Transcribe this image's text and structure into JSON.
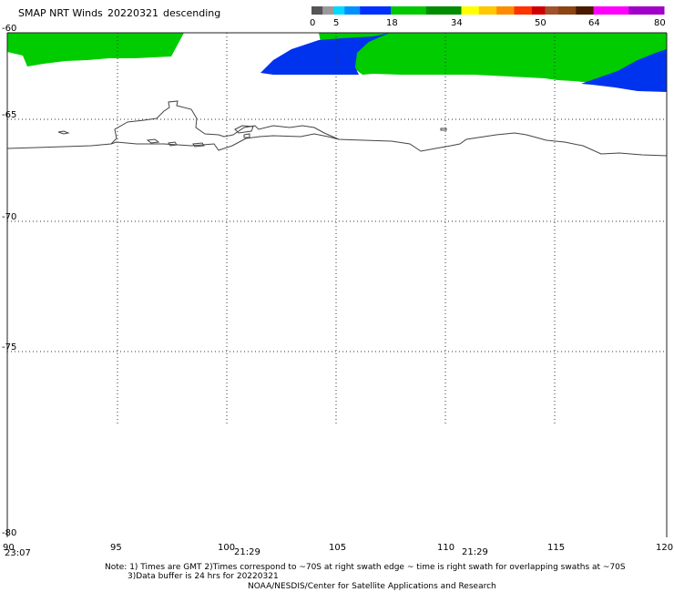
{
  "header": {
    "title": "SMAP NRT Winds",
    "date": "20220321",
    "pass": "descending"
  },
  "colorbar": {
    "ticks": [
      "0",
      "5",
      "18",
      "34",
      "50",
      "64",
      "80"
    ],
    "segments": [
      {
        "from": 0,
        "to": 2.5,
        "color": "#555555"
      },
      {
        "from": 2.5,
        "to": 5,
        "color": "#9a9a9a"
      },
      {
        "from": 5,
        "to": 7.5,
        "color": "#00d8ff"
      },
      {
        "from": 7.5,
        "to": 11,
        "color": "#0090ff"
      },
      {
        "from": 11,
        "to": 18,
        "color": "#0030ff"
      },
      {
        "from": 18,
        "to": 26,
        "color": "#00c800"
      },
      {
        "from": 26,
        "to": 34,
        "color": "#008c00"
      },
      {
        "from": 34,
        "to": 38,
        "color": "#ffff00"
      },
      {
        "from": 38,
        "to": 42,
        "color": "#ffc800"
      },
      {
        "from": 42,
        "to": 46,
        "color": "#ff8c00"
      },
      {
        "from": 46,
        "to": 50,
        "color": "#ff3200"
      },
      {
        "from": 50,
        "to": 53,
        "color": "#d00000"
      },
      {
        "from": 53,
        "to": 56,
        "color": "#a0522d"
      },
      {
        "from": 56,
        "to": 60,
        "color": "#8b4513"
      },
      {
        "from": 60,
        "to": 64,
        "color": "#4a1a00"
      },
      {
        "from": 64,
        "to": 72,
        "color": "#ff00ff"
      },
      {
        "from": 72,
        "to": 80,
        "color": "#a000c8"
      }
    ]
  },
  "map": {
    "lon_ticks": [
      "95",
      "100",
      "105",
      "110",
      "115",
      "120"
    ],
    "lon_start_label": "90",
    "lat_ticks": [
      "-60",
      "-65",
      "-70",
      "-75",
      "-80"
    ],
    "swath_times": [
      "23:07",
      "21:29",
      "21:29"
    ]
  },
  "notes": {
    "line1": "Note: 1) Times are GMT 2)Times correspond to ~70S at right swath edge ~ time is right swath for overlapping swaths at ~70S",
    "line2": "3)Data buffer is 24 hrs for 20220321",
    "credit": "NOAA/NESDIS/Center for Satellite Applications and Research"
  },
  "colors": {
    "wind_green": "#00cc00",
    "wind_blue": "#0033ee",
    "coast": "#444444",
    "grid": "#333333"
  }
}
